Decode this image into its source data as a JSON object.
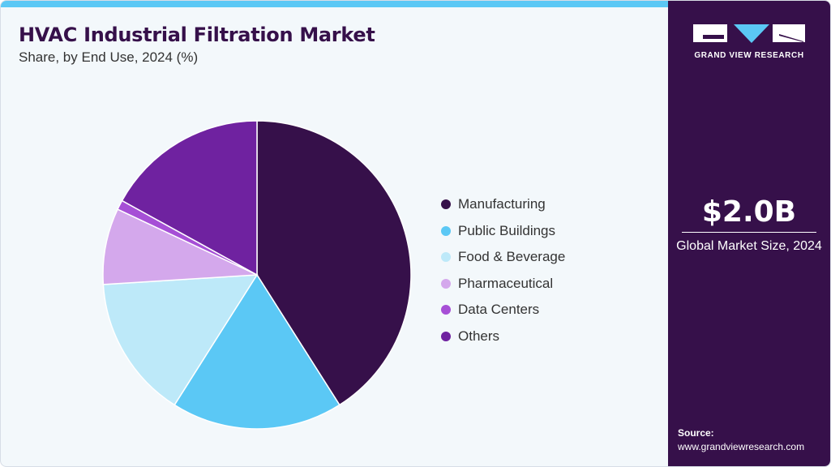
{
  "header": {
    "title": "HVAC Industrial Filtration Market",
    "subtitle": "Share, by End Use, 2024 (%)"
  },
  "colors": {
    "accent": "#5bc8f5",
    "sidebar": "#36104a",
    "background": "#f3f8fb"
  },
  "chart_data": {
    "type": "pie",
    "title": "HVAC Industrial Filtration Market",
    "subtitle": "Share, by End Use, 2024 (%)",
    "legend_position": "right",
    "categories": [
      "Manufacturing",
      "Public Buildings",
      "Food & Beverage",
      "Pharmaceutical",
      "Data Centers",
      "Others"
    ],
    "values": [
      41,
      18,
      15,
      8,
      1,
      17
    ],
    "colors": [
      "#36104a",
      "#5bc8f5",
      "#bde9f9",
      "#d4a8ec",
      "#a64fd6",
      "#6f22a0"
    ]
  },
  "sidebar": {
    "logo_text": "GRAND VIEW RESEARCH",
    "market_value": "$2.0B",
    "market_label": "Global Market Size, 2024",
    "source_title": "Source:",
    "source_url": "www.grandviewresearch.com"
  }
}
